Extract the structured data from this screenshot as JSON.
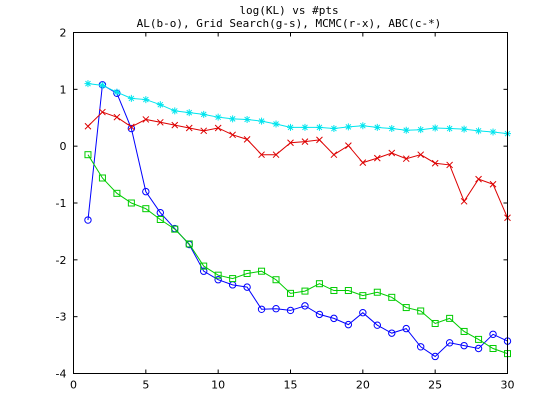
{
  "chart_data": {
    "type": "line",
    "title": "log(KL) vs #pts",
    "subtitle": "AL(b-o), Grid Search(g-s), MCMC(r-x), ABC(c-*)",
    "xlabel": "",
    "ylabel": "",
    "xlim": [
      0,
      30
    ],
    "ylim": [
      -4,
      2
    ],
    "xticks": [
      0,
      5,
      10,
      15,
      20,
      25,
      30
    ],
    "yticks": [
      -4,
      -3,
      -2,
      -1,
      0,
      1,
      2
    ],
    "grid": false,
    "x": [
      1,
      2,
      3,
      4,
      5,
      6,
      7,
      8,
      9,
      10,
      11,
      12,
      13,
      14,
      15,
      16,
      17,
      18,
      19,
      20,
      21,
      22,
      23,
      24,
      25,
      26,
      27,
      28,
      29,
      30
    ],
    "series": [
      {
        "key": "b-o",
        "color": "#0000ff",
        "marker": "o",
        "values": [
          -1.3,
          1.08,
          0.93,
          0.31,
          -0.8,
          -1.17,
          -1.45,
          -1.73,
          -2.2,
          -2.35,
          -2.44,
          -2.48,
          -2.87,
          -2.86,
          -2.89,
          -2.81,
          -2.96,
          -3.03,
          -3.14,
          -2.93,
          -3.15,
          -3.29,
          -3.21,
          -3.53,
          -3.7,
          -3.46,
          -3.51,
          -3.56,
          -3.31,
          -3.43
        ]
      },
      {
        "key": "g-s",
        "color": "#00cc00",
        "marker": "s",
        "values": [
          -0.15,
          -0.56,
          -0.83,
          -1.0,
          -1.1,
          -1.29,
          -1.46,
          -1.72,
          -2.11,
          -2.27,
          -2.33,
          -2.24,
          -2.2,
          -2.35,
          -2.59,
          -2.55,
          -2.42,
          -2.54,
          -2.54,
          -2.63,
          -2.57,
          -2.66,
          -2.84,
          -2.9,
          -3.12,
          -3.03,
          -3.26,
          -3.4,
          -3.56,
          -3.65
        ]
      },
      {
        "key": "r-x",
        "color": "#dd0000",
        "marker": "x",
        "values": [
          0.35,
          0.6,
          0.51,
          0.34,
          0.47,
          0.42,
          0.37,
          0.32,
          0.27,
          0.32,
          0.2,
          0.12,
          -0.15,
          -0.15,
          0.06,
          0.08,
          0.11,
          -0.15,
          0.01,
          -0.29,
          -0.21,
          -0.12,
          -0.22,
          -0.15,
          -0.3,
          -0.33,
          -0.97,
          -0.58,
          -0.67,
          -1.26
        ]
      },
      {
        "key": "c-*",
        "color": "#00e5ee",
        "marker": "*",
        "values": [
          1.1,
          1.07,
          0.95,
          0.84,
          0.82,
          0.73,
          0.62,
          0.59,
          0.56,
          0.51,
          0.48,
          0.47,
          0.44,
          0.39,
          0.33,
          0.33,
          0.33,
          0.31,
          0.34,
          0.36,
          0.33,
          0.31,
          0.28,
          0.29,
          0.32,
          0.31,
          0.3,
          0.27,
          0.25,
          0.22
        ]
      }
    ]
  }
}
